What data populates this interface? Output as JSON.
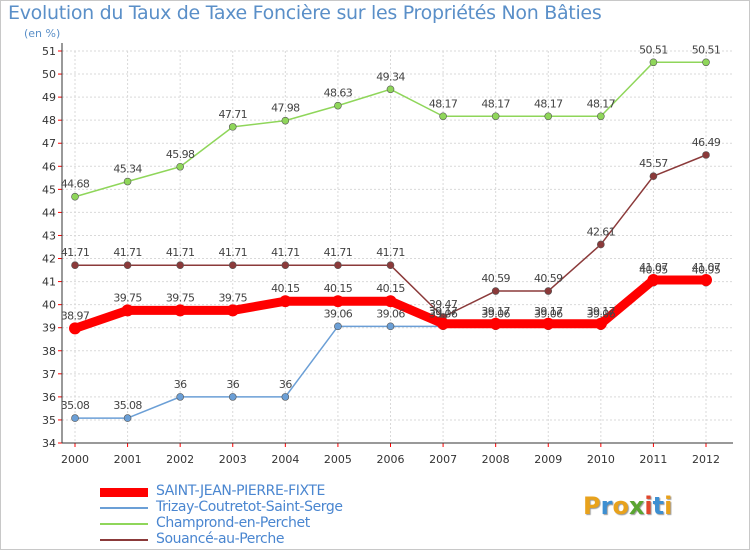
{
  "chart_data": {
    "type": "line",
    "title": "Evolution du Taux de Taxe Foncière sur les Propriétés Non Bâties",
    "subtitle": "(en %)",
    "xlabel": "",
    "ylabel": "(en %)",
    "ylim": [
      34,
      51
    ],
    "yticks": [
      34,
      35,
      36,
      37,
      38,
      39,
      40,
      41,
      42,
      43,
      44,
      45,
      46,
      47,
      48,
      49,
      50,
      51
    ],
    "x": [
      "2000",
      "2001",
      "2002",
      "2003",
      "2004",
      "2005",
      "2006",
      "2007",
      "2008",
      "2009",
      "2010",
      "2011",
      "2012"
    ],
    "grid": true,
    "legend_position": "bottom-left",
    "series": [
      {
        "name": "SAINT-JEAN-PIERRE-FIXTE",
        "color": "#ff0000",
        "values": [
          38.97,
          39.75,
          39.75,
          39.75,
          40.15,
          40.15,
          40.15,
          39.17,
          39.17,
          39.17,
          39.17,
          41.07,
          41.07
        ],
        "labels": [
          "38.97",
          "39.75",
          "39.75",
          "39.75",
          "40.15",
          "40.15",
          "40.15",
          "39.17",
          "39.17",
          "39.17",
          "39.17",
          "41.07",
          "41.07"
        ]
      },
      {
        "name": "Trizay-Coutretot-Saint-Serge",
        "color": "#6b9fd6",
        "values": [
          35.08,
          35.08,
          36,
          36,
          36,
          39.06,
          39.06,
          39.06,
          39.06,
          39.06,
          39.06,
          40.95,
          40.95
        ],
        "labels": [
          "35.08",
          "35.08",
          "36",
          "36",
          "36",
          "39.06",
          "39.06",
          "39.06",
          "39.06",
          "39.06",
          "39.06",
          "40.95",
          "40.95"
        ]
      },
      {
        "name": "Champrond-en-Perchet",
        "color": "#8fd65a",
        "values": [
          44.68,
          45.34,
          45.98,
          47.71,
          47.98,
          48.63,
          49.34,
          48.17,
          48.17,
          48.17,
          48.17,
          50.51,
          50.51
        ],
        "labels": [
          "44.68",
          "45.34",
          "45.98",
          "47.71",
          "47.98",
          "48.63",
          "49.34",
          "48.17",
          "48.17",
          "48.17",
          "48.17",
          "50.51",
          "50.51"
        ]
      },
      {
        "name": "Souancé-au-Perche",
        "color": "#8b3a3a",
        "values": [
          41.71,
          41.71,
          41.71,
          41.71,
          41.71,
          41.71,
          41.71,
          39.47,
          40.59,
          40.59,
          42.61,
          45.57,
          46.49
        ],
        "labels": [
          "41.71",
          "41.71",
          "41.71",
          "41.71",
          "41.71",
          "41.71",
          "41.71",
          "39.47",
          "40.59",
          "40.59",
          "42.61",
          "45.57",
          "46.49"
        ]
      }
    ]
  },
  "logo": {
    "letters": [
      "P",
      "r",
      "o",
      "x",
      "i",
      "t",
      "i"
    ],
    "colors": [
      "#e8a21c",
      "#3d8fd1",
      "#e8a21c",
      "#5aa531",
      "#e0462c",
      "#3d8fd1",
      "#e8a21c"
    ]
  }
}
